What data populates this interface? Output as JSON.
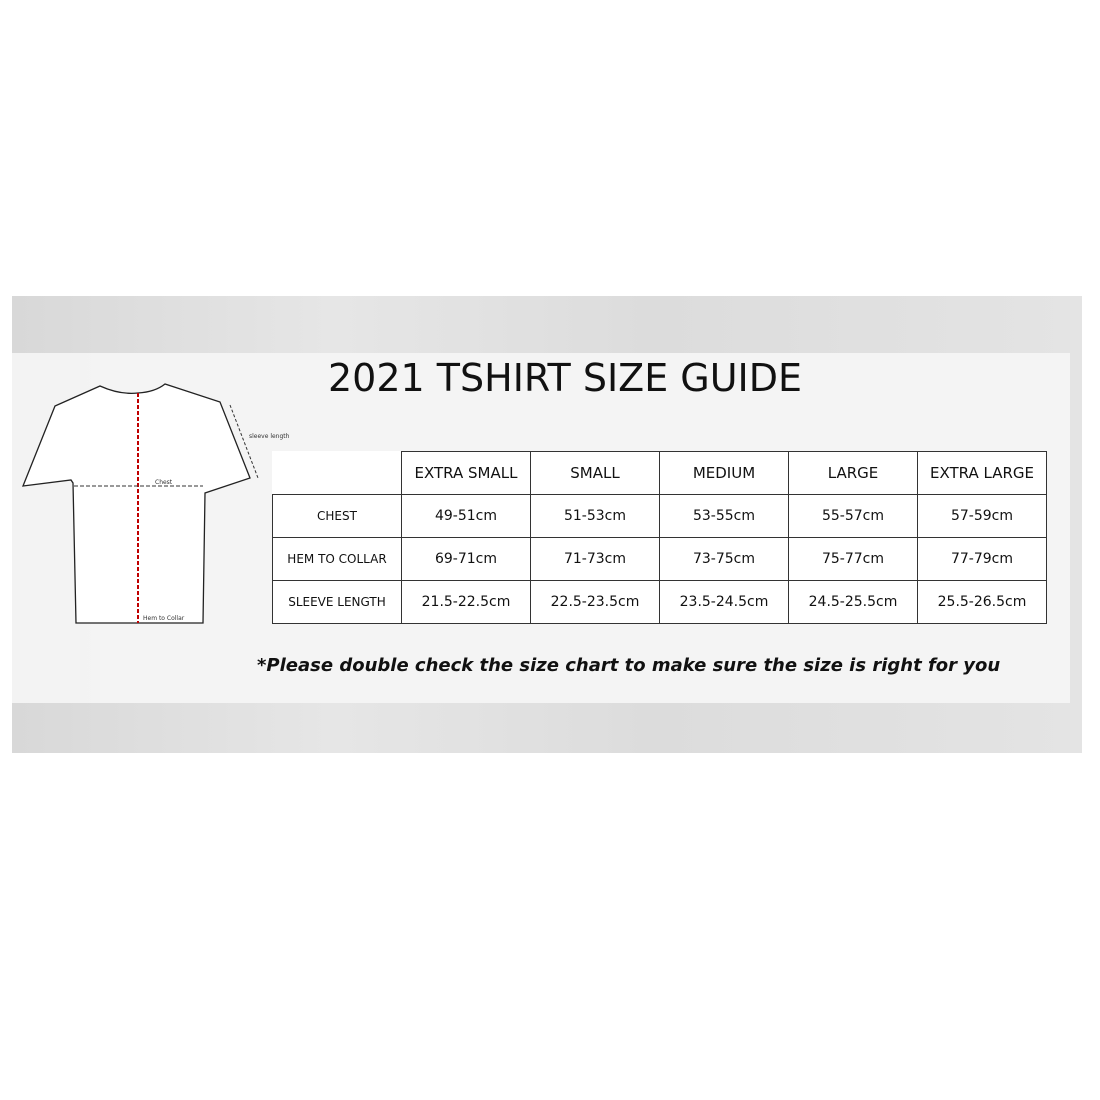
{
  "title": "2021 TSHIRT SIZE GUIDE",
  "diagram": {
    "sleeve_label": "sleeve length",
    "chest_label": "Chest",
    "hem_label": "Hem to Collar",
    "measure_color": "#c00000"
  },
  "table": {
    "columns": [
      "EXTRA SMALL",
      "SMALL",
      "MEDIUM",
      "LARGE",
      "EXTRA LARGE"
    ],
    "rows": [
      {
        "label": "CHEST",
        "values": [
          "49-51cm",
          "51-53cm",
          "53-55cm",
          "55-57cm",
          "57-59cm"
        ]
      },
      {
        "label": "HEM TO COLLAR",
        "values": [
          "69-71cm",
          "71-73cm",
          "73-75cm",
          "75-77cm",
          "77-79cm"
        ]
      },
      {
        "label": "SLEEVE LENGTH",
        "values": [
          "21.5-22.5cm",
          "22.5-23.5cm",
          "23.5-24.5cm",
          "24.5-25.5cm",
          "25.5-26.5cm"
        ]
      }
    ]
  },
  "note": "*Please double check the size chart to make sure the size is right for you"
}
